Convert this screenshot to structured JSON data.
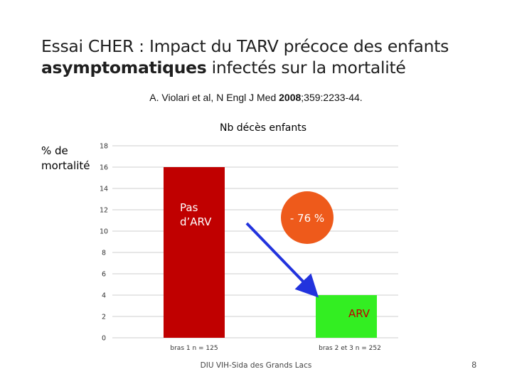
{
  "slide": {
    "title_line1": "Essai CHER : Impact du TARV précoce des enfants",
    "title_line2_bold": "asymptomatiques",
    "title_line2_rest": " infectés sur la mortalité",
    "reference_pre": "A. Violari et al, N Engl J Med ",
    "reference_year": "2008",
    "reference_post": ";359:2233-44.",
    "footer": "DIU VIH-Sida des Grands Lacs",
    "page_number": "8"
  },
  "chart_data": {
    "type": "bar",
    "title": "Nb décès enfants",
    "ylabel_line1": "% de",
    "ylabel_line2": "mortalité",
    "categories": [
      "bras 1 n = 125",
      "bras 2 et 3 n = 252"
    ],
    "values": [
      16,
      4
    ],
    "bar_labels": [
      "Pas d’ARV",
      "ARV"
    ],
    "bar_colors": [
      "#c00000",
      "#33ee22"
    ],
    "ylim": [
      0,
      18
    ],
    "yticks": [
      0,
      2,
      4,
      6,
      8,
      10,
      12,
      14,
      16,
      18
    ],
    "grid": true,
    "annotation": {
      "text": "- 76 %",
      "color": "#ee5a1b"
    },
    "arrow_color": "#2233dd"
  }
}
